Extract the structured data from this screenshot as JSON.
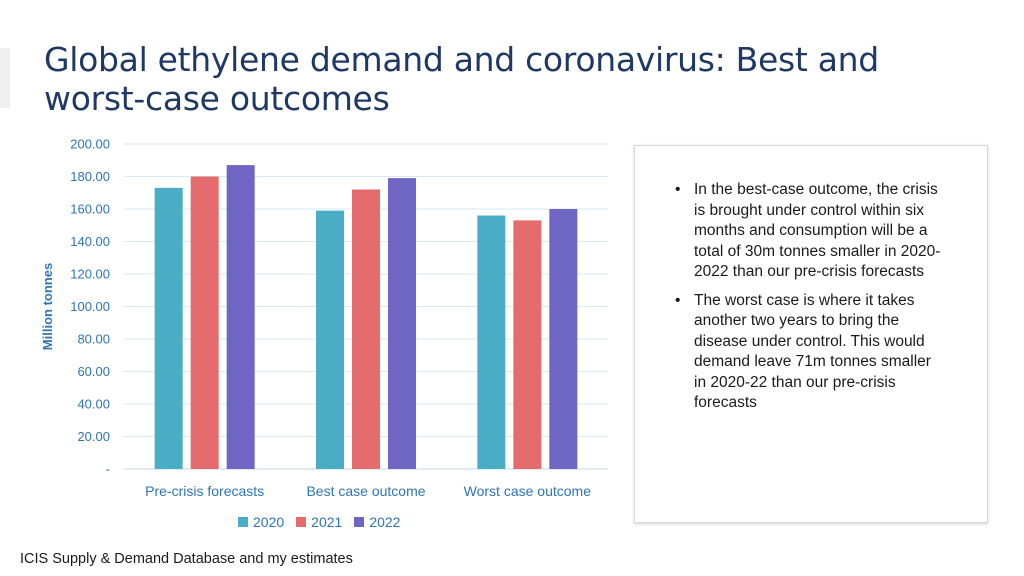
{
  "title": "Global ethylene demand and coronavirus: Best and worst-case outcomes",
  "source": "ICIS Supply & Demand Database and my estimates",
  "notes": [
    "In the best-case outcome, the crisis is brought under control within six months and consumption will be a total of 30m tonnes smaller in 2020-2022 than our pre-crisis forecasts",
    "The worst case is where it takes another two years to bring the disease under control. This would demand leave 71m tonnes smaller in 2020-22 than our pre-crisis forecasts"
  ],
  "bullet_glyph": "•",
  "chart_data": {
    "type": "bar",
    "categories": [
      "Pre-crisis forecasts",
      "Best case outcome",
      "Worst case outcome"
    ],
    "series": [
      {
        "name": "2020",
        "values": [
          173,
          159,
          156
        ],
        "color": "#4bacc6"
      },
      {
        "name": "2021",
        "values": [
          180,
          172,
          153
        ],
        "color": "#e46c6c"
      },
      {
        "name": "2022",
        "values": [
          187,
          179,
          160
        ],
        "color": "#6f66c4"
      }
    ],
    "ylabel": "Million tonnes",
    "ylim": [
      0,
      200
    ],
    "yticks": [
      0,
      20,
      40,
      60,
      80,
      100,
      120,
      140,
      160,
      180,
      200
    ],
    "ytick_labels": [
      "-",
      "20.00",
      "40.00",
      "60.00",
      "80.00",
      "100.00",
      "120.00",
      "140.00",
      "160.00",
      "180.00",
      "200.00"
    ],
    "grid": true,
    "legend_position": "bottom",
    "gridline_color": "#d6e9f5",
    "axis_color": "#bfd8ea"
  }
}
